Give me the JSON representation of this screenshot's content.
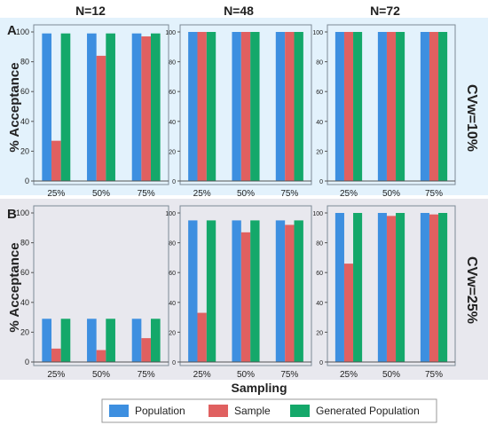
{
  "colors": {
    "population": "#3d8fe0",
    "sample": "#e06060",
    "generated": "#14a86a",
    "row_a_bg": "#e3f2fc",
    "row_b_bg": "#e8e8ee"
  },
  "figure": {
    "column_titles": [
      "N=12",
      "N=48",
      "N=72"
    ],
    "row_labels": [
      "A",
      "B"
    ],
    "row_side_labels": [
      "CVw=10%",
      "CVw=25%"
    ],
    "y_label": "% Acceptance",
    "x_label": "Sampling"
  },
  "legend": {
    "entries": [
      {
        "label": "Population",
        "color_key": "population"
      },
      {
        "label": "Sample",
        "color_key": "sample"
      },
      {
        "label": "Generated Population",
        "color_key": "generated"
      }
    ]
  },
  "chart_data": [
    {
      "type": "bar",
      "panel": "A-N=12",
      "categories": [
        "25%",
        "50%",
        "75%"
      ],
      "ylim": [
        0,
        100
      ],
      "yticks": [
        0,
        20,
        40,
        60,
        80,
        100
      ],
      "series": [
        {
          "name": "Population",
          "values": [
            99,
            99,
            99
          ]
        },
        {
          "name": "Sample",
          "values": [
            27,
            84,
            97
          ]
        },
        {
          "name": "Generated Population",
          "values": [
            99,
            99,
            99
          ]
        }
      ]
    },
    {
      "type": "bar",
      "panel": "A-N=48",
      "categories": [
        "25%",
        "50%",
        "75%"
      ],
      "ylim": [
        0,
        100
      ],
      "yticks": [
        0,
        20,
        40,
        60,
        80,
        100
      ],
      "series": [
        {
          "name": "Population",
          "values": [
            100,
            100,
            100
          ]
        },
        {
          "name": "Sample",
          "values": [
            100,
            100,
            100
          ]
        },
        {
          "name": "Generated Population",
          "values": [
            100,
            100,
            100
          ]
        }
      ]
    },
    {
      "type": "bar",
      "panel": "A-N=72",
      "categories": [
        "25%",
        "50%",
        "75%"
      ],
      "ylim": [
        0,
        100
      ],
      "yticks": [
        0,
        20,
        40,
        60,
        80,
        100
      ],
      "series": [
        {
          "name": "Population",
          "values": [
            100,
            100,
            100
          ]
        },
        {
          "name": "Sample",
          "values": [
            100,
            100,
            100
          ]
        },
        {
          "name": "Generated Population",
          "values": [
            100,
            100,
            100
          ]
        }
      ]
    },
    {
      "type": "bar",
      "panel": "B-N=12",
      "categories": [
        "25%",
        "50%",
        "75%"
      ],
      "ylim": [
        0,
        100
      ],
      "yticks": [
        0,
        20,
        40,
        60,
        80,
        100
      ],
      "series": [
        {
          "name": "Population",
          "values": [
            29,
            29,
            29
          ]
        },
        {
          "name": "Sample",
          "values": [
            9,
            8,
            16
          ]
        },
        {
          "name": "Generated Population",
          "values": [
            29,
            29,
            29
          ]
        }
      ]
    },
    {
      "type": "bar",
      "panel": "B-N=48",
      "categories": [
        "25%",
        "50%",
        "75%"
      ],
      "ylim": [
        0,
        100
      ],
      "yticks": [
        0,
        20,
        40,
        60,
        80,
        100
      ],
      "series": [
        {
          "name": "Population",
          "values": [
            95,
            95,
            95
          ]
        },
        {
          "name": "Sample",
          "values": [
            33,
            87,
            92
          ]
        },
        {
          "name": "Generated Population",
          "values": [
            95,
            95,
            95
          ]
        }
      ]
    },
    {
      "type": "bar",
      "panel": "B-N=72",
      "categories": [
        "25%",
        "50%",
        "75%"
      ],
      "ylim": [
        0,
        100
      ],
      "yticks": [
        0,
        20,
        40,
        60,
        80,
        100
      ],
      "series": [
        {
          "name": "Population",
          "values": [
            100,
            100,
            100
          ]
        },
        {
          "name": "Sample",
          "values": [
            66,
            98,
            99
          ]
        },
        {
          "name": "Generated Population",
          "values": [
            100,
            100,
            100
          ]
        }
      ]
    }
  ]
}
